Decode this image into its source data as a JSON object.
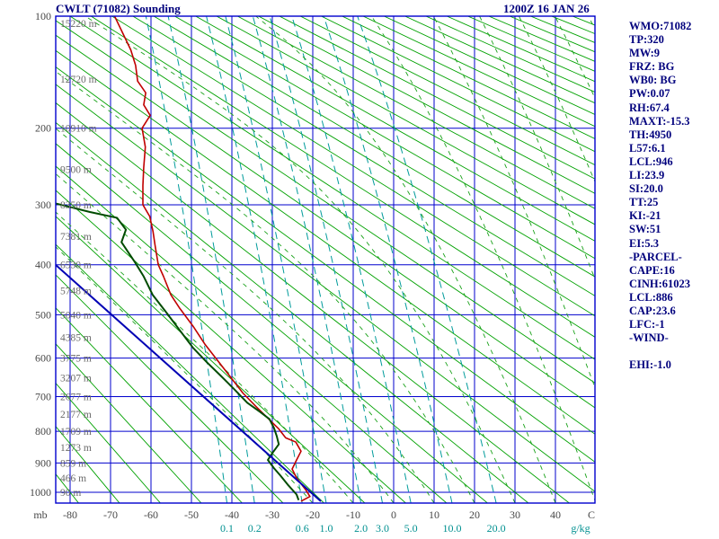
{
  "header": {
    "title": "CWLT (71082) Sounding",
    "datetime": "1200Z 16 JAN 26"
  },
  "side_panel": {
    "lines": [
      "WMO:71082",
      "TP:320",
      "MW:9",
      "FRZ: BG",
      "WB0: BG",
      "PW:0.07",
      "RH:67.4",
      "MAXT:-15.3",
      "TH:4950",
      "L57:6.1",
      "LCL:946",
      "LI:23.9",
      "SI:20.0",
      "TT:25",
      "KI:-21",
      "SW:51",
      "EI:5.3",
      "-PARCEL-",
      "CAPE:16",
      "CINH:61023",
      "LCL:886",
      "CAP:23.6",
      "LFC:-1",
      "-WIND-",
      "",
      "EHI:-1.0"
    ]
  },
  "chart_data": {
    "type": "line",
    "diagram": "stuve_sounding",
    "title": "CWLT (71082) Sounding",
    "x_axis": {
      "unit": "C",
      "left_unit": "mb",
      "ticks": [
        -80,
        -70,
        -60,
        -50,
        -40,
        -30,
        -20,
        -10,
        0,
        10,
        20,
        30,
        40
      ]
    },
    "y_axis": {
      "unit": "mb",
      "scale": "pressure^0.286 (Stuve, log-type)",
      "ticks": [
        100,
        200,
        300,
        400,
        500,
        600,
        700,
        800,
        900,
        1000
      ],
      "range": [
        100,
        1039
      ]
    },
    "height_labels": [
      {
        "p": 100,
        "text": "15220 m"
      },
      {
        "p": 150,
        "text": "12720 m"
      },
      {
        "p": 200,
        "text": "10910 m"
      },
      {
        "p": 250,
        "text": "9500 m"
      },
      {
        "p": 300,
        "text": "8350 m"
      },
      {
        "p": 350,
        "text": "7381 m"
      },
      {
        "p": 400,
        "text": "6530 m"
      },
      {
        "p": 450,
        "text": "5748 m"
      },
      {
        "p": 500,
        "text": "5040 m"
      },
      {
        "p": 550,
        "text": "4385 m"
      },
      {
        "p": 600,
        "text": "3775 m"
      },
      {
        "p": 650,
        "text": "3207 m"
      },
      {
        "p": 700,
        "text": "2677 m"
      },
      {
        "p": 750,
        "text": "2177 m"
      },
      {
        "p": 800,
        "text": "1709 m"
      },
      {
        "p": 850,
        "text": "1273 m"
      },
      {
        "p": 900,
        "text": "859 m"
      },
      {
        "p": 950,
        "text": "466 m"
      },
      {
        "p": 1000,
        "text": "90 m"
      }
    ],
    "mixing_ratio_labels": [
      "0.1",
      "0.2",
      "0.6",
      "1.0",
      "2.0",
      "3.0",
      "5.0",
      "10.0",
      "20.0"
    ],
    "mixing_ratio_unit": "g/kg",
    "reference_lines": {
      "dry_adiabats_c": {
        "start": -80,
        "end": 350,
        "step": 10
      },
      "moist_adiabats_c": {
        "start": -20,
        "end": 100,
        "step": 10
      },
      "mixing_ratio_g_kg": [
        0.1,
        0.2,
        0.6,
        1.0,
        2.0,
        3.0,
        5.0,
        10.0,
        20.0
      ]
    },
    "series": [
      {
        "name": "temperature",
        "color": "#c00000",
        "width": 1.6,
        "points": [
          [
            100,
            -69
          ],
          [
            112,
            -67
          ],
          [
            125,
            -65
          ],
          [
            138,
            -63.8
          ],
          [
            152,
            -63.3
          ],
          [
            163,
            -61.3
          ],
          [
            175,
            -61.8
          ],
          [
            186,
            -60.2
          ],
          [
            200,
            -62.2
          ],
          [
            222,
            -61.4
          ],
          [
            248,
            -61.8
          ],
          [
            272,
            -62
          ],
          [
            300,
            -62
          ],
          [
            318,
            -60.3
          ],
          [
            342,
            -59.5
          ],
          [
            365,
            -59
          ],
          [
            400,
            -58.2
          ],
          [
            422,
            -56.9
          ],
          [
            458,
            -55.1
          ],
          [
            486,
            -52.9
          ],
          [
            525,
            -49.6
          ],
          [
            566,
            -46.7
          ],
          [
            600,
            -44
          ],
          [
            643,
            -40.7
          ],
          [
            690,
            -37.3
          ],
          [
            728,
            -34
          ],
          [
            766,
            -30.7
          ],
          [
            793,
            -28.4
          ],
          [
            820,
            -26.7
          ],
          [
            833,
            -24.2
          ],
          [
            862,
            -22.9
          ],
          [
            890,
            -24
          ],
          [
            920,
            -25.1
          ],
          [
            950,
            -24
          ],
          [
            990,
            -21.8
          ],
          [
            1015,
            -20.7
          ],
          [
            1032,
            -22.9
          ]
        ]
      },
      {
        "name": "dewpoint",
        "color": "#004b00",
        "width": 2,
        "points": [
          [
            298,
            -83.6
          ],
          [
            311,
            -75.1
          ],
          [
            320,
            -68.4
          ],
          [
            339,
            -66.2
          ],
          [
            360,
            -67.3
          ],
          [
            395,
            -64
          ],
          [
            422,
            -61.8
          ],
          [
            458,
            -59.6
          ],
          [
            495,
            -56.2
          ],
          [
            534,
            -52.9
          ],
          [
            575,
            -49.6
          ],
          [
            610,
            -46.2
          ],
          [
            643,
            -42.9
          ],
          [
            678,
            -39.6
          ],
          [
            717,
            -36.2
          ],
          [
            744,
            -32.9
          ],
          [
            764,
            -30.7
          ],
          [
            790,
            -29.6
          ],
          [
            815,
            -28.9
          ],
          [
            840,
            -28.4
          ],
          [
            868,
            -30
          ],
          [
            890,
            -31.1
          ],
          [
            917,
            -29.6
          ],
          [
            942,
            -28
          ],
          [
            973,
            -26.2
          ],
          [
            1008,
            -24
          ],
          [
            1028,
            -23.5
          ]
        ]
      },
      {
        "name": "parcel",
        "color": "#0000b4",
        "width": 2,
        "points": [
          [
            1032,
            -18
          ],
          [
            400,
            -83.6
          ]
        ]
      }
    ],
    "grid_color": "#0000cd",
    "dry_adiabat_color": "#00a100",
    "moist_adiabat_color": "#19a119",
    "mixing_ratio_color": "#009b9b"
  }
}
